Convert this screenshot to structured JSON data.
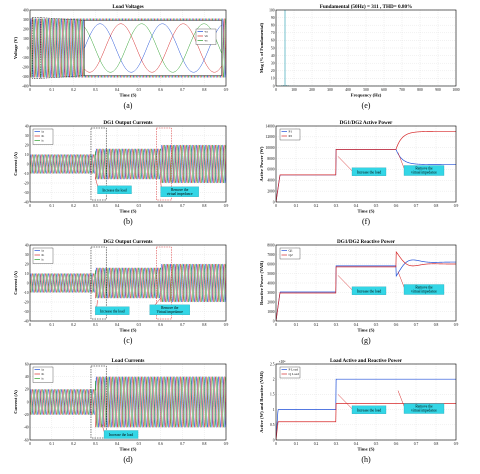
{
  "chart_data": [
    {
      "id": "a",
      "type": "line",
      "caption": "(a)",
      "title": "Load Voltages",
      "xlabel": "Time (S)",
      "ylabel": "Voltage (V)",
      "xlim": [
        0,
        0.9
      ],
      "ylim": [
        -400,
        400
      ],
      "xticks": [
        "0",
        "0.1",
        "0.2",
        "0.3",
        "0.4",
        "0.5",
        "0.6",
        "0.7",
        "0.8",
        "0.9"
      ],
      "yticks": [
        "-400",
        "-300",
        "-200",
        "-100",
        "0",
        "100",
        "200",
        "300",
        "400"
      ],
      "legend": [
        "va",
        "vb",
        "vc"
      ],
      "annotations": []
    },
    {
      "id": "e",
      "type": "bar",
      "caption": "(e)",
      "title": "Fundamental (50Hz) = 311 , THD= 0.80%",
      "xlabel": "Frequency (Hz)",
      "ylabel": "Mag (% of Fundamental)",
      "xlim": [
        0,
        1000
      ],
      "ylim": [
        0,
        100
      ],
      "xticks": [
        "0",
        "100",
        "200",
        "300",
        "400",
        "500",
        "600",
        "700",
        "800",
        "900",
        "1000"
      ],
      "yticks": [
        "0",
        "10",
        "20",
        "30",
        "40",
        "50",
        "60",
        "70",
        "80",
        "90",
        "100"
      ],
      "legend": [],
      "annotations": []
    },
    {
      "id": "b",
      "type": "line",
      "caption": "(b)",
      "title": "DG1 Output Currents",
      "xlabel": "Time (S)",
      "ylabel": "Current (A)",
      "xlim": [
        0,
        0.9
      ],
      "ylim": [
        -40,
        40
      ],
      "xticks": [
        "0",
        "0.1",
        "0.2",
        "0.3",
        "0.4",
        "0.5",
        "0.6",
        "0.7",
        "0.8",
        "0.9"
      ],
      "yticks": [
        "-40",
        "-30",
        "-20",
        "-10",
        "0",
        "10",
        "20",
        "30",
        "40"
      ],
      "legend": [
        "ia",
        "ib",
        "ic"
      ],
      "annotations": [
        "Increase the load",
        "Remove the virtual impedance"
      ]
    },
    {
      "id": "f",
      "type": "line",
      "caption": "(f)",
      "title": "DG1/DG2 Active Power",
      "xlabel": "Time (S)",
      "ylabel": "Active Power (W)",
      "xlim": [
        0,
        0.9
      ],
      "ylim": [
        0,
        14000
      ],
      "xticks": [
        "0",
        "0.1",
        "0.2",
        "0.3",
        "0.4",
        "0.5",
        "0.6",
        "0.7",
        "0.8",
        "0.9"
      ],
      "yticks": [
        "0",
        "2000",
        "4000",
        "6000",
        "8000",
        "10000",
        "12000",
        "14000"
      ],
      "legend": [
        "P1",
        "P2"
      ],
      "annotations": [
        "Increase the load",
        "Remove the virtual impedance"
      ]
    },
    {
      "id": "c",
      "type": "line",
      "caption": "(c)",
      "title": "DG2 Output Currents",
      "xlabel": "Time (S)",
      "ylabel": "Current (A)",
      "xlim": [
        0,
        0.9
      ],
      "ylim": [
        -40,
        40
      ],
      "xticks": [
        "0",
        "0.1",
        "0.2",
        "0.3",
        "0.4",
        "0.5",
        "0.6",
        "0.7",
        "0.8",
        "0.9"
      ],
      "yticks": [
        "-40",
        "-30",
        "-20",
        "-10",
        "0",
        "10",
        "20",
        "30",
        "40"
      ],
      "legend": [
        "ia",
        "ib",
        "ic"
      ],
      "annotations": [
        "Increase the load",
        "Remove the Virtual impedance"
      ]
    },
    {
      "id": "g",
      "type": "line",
      "caption": "(g)",
      "title": "DG1/DG2 Reactive Power",
      "xlabel": "Time (S)",
      "ylabel": "Reactive Power (VAR)",
      "xlim": [
        0,
        0.9
      ],
      "ylim": [
        0,
        8000
      ],
      "xticks": [
        "0",
        "0.1",
        "0.2",
        "0.3",
        "0.4",
        "0.5",
        "0.6",
        "0.7",
        "0.8",
        "0.9"
      ],
      "yticks": [
        "0",
        "1000",
        "2000",
        "3000",
        "4000",
        "5000",
        "6000",
        "7000",
        "8000"
      ],
      "legend": [
        "Q1",
        "Q2"
      ],
      "annotations": [
        "Increase the load",
        "Remove the virtual impedance"
      ]
    },
    {
      "id": "d",
      "type": "line",
      "caption": "(d)",
      "title": "Load Currents",
      "xlabel": "Time (S)",
      "ylabel": "Current (A)",
      "xlim": [
        0,
        0.9
      ],
      "ylim": [
        -60,
        60
      ],
      "xticks": [
        "0",
        "0.1",
        "0.2",
        "0.3",
        "0.4",
        "0.5",
        "0.6",
        "0.7",
        "0.8",
        "0.9"
      ],
      "yticks": [
        "-60",
        "-40",
        "-20",
        "0",
        "20",
        "40",
        "60"
      ],
      "legend": [
        "ia",
        "ib",
        "ic"
      ],
      "annotations": [
        "Increase the load"
      ]
    },
    {
      "id": "h",
      "type": "line",
      "caption": "(h)",
      "title": "Load Active and Reactive Power",
      "xlabel": "Time (S)",
      "ylabel": "Active (W) and Reactive (VAR)",
      "exponent": "×10⁴",
      "xlim": [
        0,
        0.9
      ],
      "ylim": [
        0,
        2.5
      ],
      "xticks": [
        "0",
        "0.1",
        "0.2",
        "0.3",
        "0.4",
        "0.5",
        "0.6",
        "0.7",
        "0.8",
        "0.9"
      ],
      "yticks": [
        "0",
        "0.5",
        "1",
        "1.5",
        "2",
        "2.5"
      ],
      "legend": [
        "P Load",
        "Q Load"
      ],
      "annotations": [
        "Increase the load",
        "Remove the virtual impedance"
      ]
    }
  ]
}
